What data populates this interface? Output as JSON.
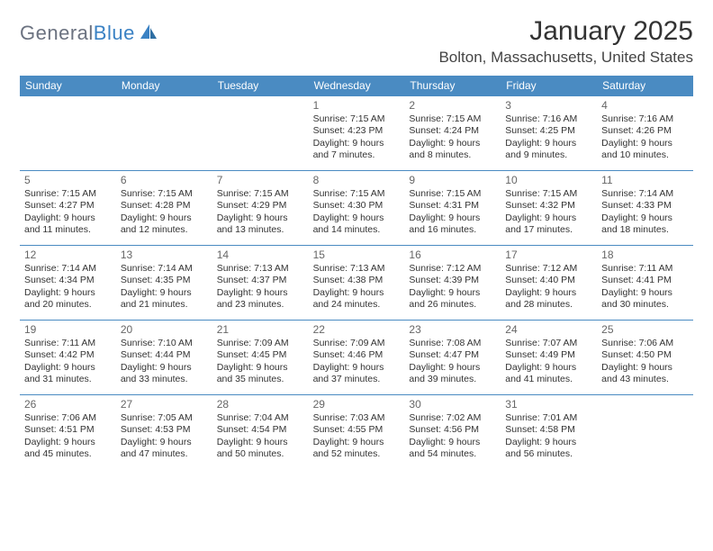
{
  "logo": {
    "text_gray": "General",
    "text_blue": "Blue"
  },
  "title": "January 2025",
  "location": "Bolton, Massachusetts, United States",
  "colors": {
    "header_bg": "#4a8bc2",
    "header_text": "#ffffff",
    "row_divider": "#4a8bc2",
    "body_text": "#333333",
    "daynum_text": "#666666",
    "logo_gray": "#6b7280",
    "logo_blue": "#3b82c4",
    "background": "#ffffff"
  },
  "typography": {
    "title_fontsize": 30,
    "location_fontsize": 17,
    "dayheader_fontsize": 12,
    "daynum_fontsize": 12,
    "info_fontsize": 10.5,
    "logo_fontsize": 22
  },
  "structure": {
    "type": "calendar-month",
    "columns": 7,
    "rows": 5
  },
  "day_labels": [
    "Sunday",
    "Monday",
    "Tuesday",
    "Wednesday",
    "Thursday",
    "Friday",
    "Saturday"
  ],
  "weeks": [
    [
      null,
      null,
      null,
      {
        "d": "1",
        "sr": "Sunrise: 7:15 AM",
        "ss": "Sunset: 4:23 PM",
        "dl1": "Daylight: 9 hours",
        "dl2": "and 7 minutes."
      },
      {
        "d": "2",
        "sr": "Sunrise: 7:15 AM",
        "ss": "Sunset: 4:24 PM",
        "dl1": "Daylight: 9 hours",
        "dl2": "and 8 minutes."
      },
      {
        "d": "3",
        "sr": "Sunrise: 7:16 AM",
        "ss": "Sunset: 4:25 PM",
        "dl1": "Daylight: 9 hours",
        "dl2": "and 9 minutes."
      },
      {
        "d": "4",
        "sr": "Sunrise: 7:16 AM",
        "ss": "Sunset: 4:26 PM",
        "dl1": "Daylight: 9 hours",
        "dl2": "and 10 minutes."
      }
    ],
    [
      {
        "d": "5",
        "sr": "Sunrise: 7:15 AM",
        "ss": "Sunset: 4:27 PM",
        "dl1": "Daylight: 9 hours",
        "dl2": "and 11 minutes."
      },
      {
        "d": "6",
        "sr": "Sunrise: 7:15 AM",
        "ss": "Sunset: 4:28 PM",
        "dl1": "Daylight: 9 hours",
        "dl2": "and 12 minutes."
      },
      {
        "d": "7",
        "sr": "Sunrise: 7:15 AM",
        "ss": "Sunset: 4:29 PM",
        "dl1": "Daylight: 9 hours",
        "dl2": "and 13 minutes."
      },
      {
        "d": "8",
        "sr": "Sunrise: 7:15 AM",
        "ss": "Sunset: 4:30 PM",
        "dl1": "Daylight: 9 hours",
        "dl2": "and 14 minutes."
      },
      {
        "d": "9",
        "sr": "Sunrise: 7:15 AM",
        "ss": "Sunset: 4:31 PM",
        "dl1": "Daylight: 9 hours",
        "dl2": "and 16 minutes."
      },
      {
        "d": "10",
        "sr": "Sunrise: 7:15 AM",
        "ss": "Sunset: 4:32 PM",
        "dl1": "Daylight: 9 hours",
        "dl2": "and 17 minutes."
      },
      {
        "d": "11",
        "sr": "Sunrise: 7:14 AM",
        "ss": "Sunset: 4:33 PM",
        "dl1": "Daylight: 9 hours",
        "dl2": "and 18 minutes."
      }
    ],
    [
      {
        "d": "12",
        "sr": "Sunrise: 7:14 AM",
        "ss": "Sunset: 4:34 PM",
        "dl1": "Daylight: 9 hours",
        "dl2": "and 20 minutes."
      },
      {
        "d": "13",
        "sr": "Sunrise: 7:14 AM",
        "ss": "Sunset: 4:35 PM",
        "dl1": "Daylight: 9 hours",
        "dl2": "and 21 minutes."
      },
      {
        "d": "14",
        "sr": "Sunrise: 7:13 AM",
        "ss": "Sunset: 4:37 PM",
        "dl1": "Daylight: 9 hours",
        "dl2": "and 23 minutes."
      },
      {
        "d": "15",
        "sr": "Sunrise: 7:13 AM",
        "ss": "Sunset: 4:38 PM",
        "dl1": "Daylight: 9 hours",
        "dl2": "and 24 minutes."
      },
      {
        "d": "16",
        "sr": "Sunrise: 7:12 AM",
        "ss": "Sunset: 4:39 PM",
        "dl1": "Daylight: 9 hours",
        "dl2": "and 26 minutes."
      },
      {
        "d": "17",
        "sr": "Sunrise: 7:12 AM",
        "ss": "Sunset: 4:40 PM",
        "dl1": "Daylight: 9 hours",
        "dl2": "and 28 minutes."
      },
      {
        "d": "18",
        "sr": "Sunrise: 7:11 AM",
        "ss": "Sunset: 4:41 PM",
        "dl1": "Daylight: 9 hours",
        "dl2": "and 30 minutes."
      }
    ],
    [
      {
        "d": "19",
        "sr": "Sunrise: 7:11 AM",
        "ss": "Sunset: 4:42 PM",
        "dl1": "Daylight: 9 hours",
        "dl2": "and 31 minutes."
      },
      {
        "d": "20",
        "sr": "Sunrise: 7:10 AM",
        "ss": "Sunset: 4:44 PM",
        "dl1": "Daylight: 9 hours",
        "dl2": "and 33 minutes."
      },
      {
        "d": "21",
        "sr": "Sunrise: 7:09 AM",
        "ss": "Sunset: 4:45 PM",
        "dl1": "Daylight: 9 hours",
        "dl2": "and 35 minutes."
      },
      {
        "d": "22",
        "sr": "Sunrise: 7:09 AM",
        "ss": "Sunset: 4:46 PM",
        "dl1": "Daylight: 9 hours",
        "dl2": "and 37 minutes."
      },
      {
        "d": "23",
        "sr": "Sunrise: 7:08 AM",
        "ss": "Sunset: 4:47 PM",
        "dl1": "Daylight: 9 hours",
        "dl2": "and 39 minutes."
      },
      {
        "d": "24",
        "sr": "Sunrise: 7:07 AM",
        "ss": "Sunset: 4:49 PM",
        "dl1": "Daylight: 9 hours",
        "dl2": "and 41 minutes."
      },
      {
        "d": "25",
        "sr": "Sunrise: 7:06 AM",
        "ss": "Sunset: 4:50 PM",
        "dl1": "Daylight: 9 hours",
        "dl2": "and 43 minutes."
      }
    ],
    [
      {
        "d": "26",
        "sr": "Sunrise: 7:06 AM",
        "ss": "Sunset: 4:51 PM",
        "dl1": "Daylight: 9 hours",
        "dl2": "and 45 minutes."
      },
      {
        "d": "27",
        "sr": "Sunrise: 7:05 AM",
        "ss": "Sunset: 4:53 PM",
        "dl1": "Daylight: 9 hours",
        "dl2": "and 47 minutes."
      },
      {
        "d": "28",
        "sr": "Sunrise: 7:04 AM",
        "ss": "Sunset: 4:54 PM",
        "dl1": "Daylight: 9 hours",
        "dl2": "and 50 minutes."
      },
      {
        "d": "29",
        "sr": "Sunrise: 7:03 AM",
        "ss": "Sunset: 4:55 PM",
        "dl1": "Daylight: 9 hours",
        "dl2": "and 52 minutes."
      },
      {
        "d": "30",
        "sr": "Sunrise: 7:02 AM",
        "ss": "Sunset: 4:56 PM",
        "dl1": "Daylight: 9 hours",
        "dl2": "and 54 minutes."
      },
      {
        "d": "31",
        "sr": "Sunrise: 7:01 AM",
        "ss": "Sunset: 4:58 PM",
        "dl1": "Daylight: 9 hours",
        "dl2": "and 56 minutes."
      },
      null
    ]
  ]
}
